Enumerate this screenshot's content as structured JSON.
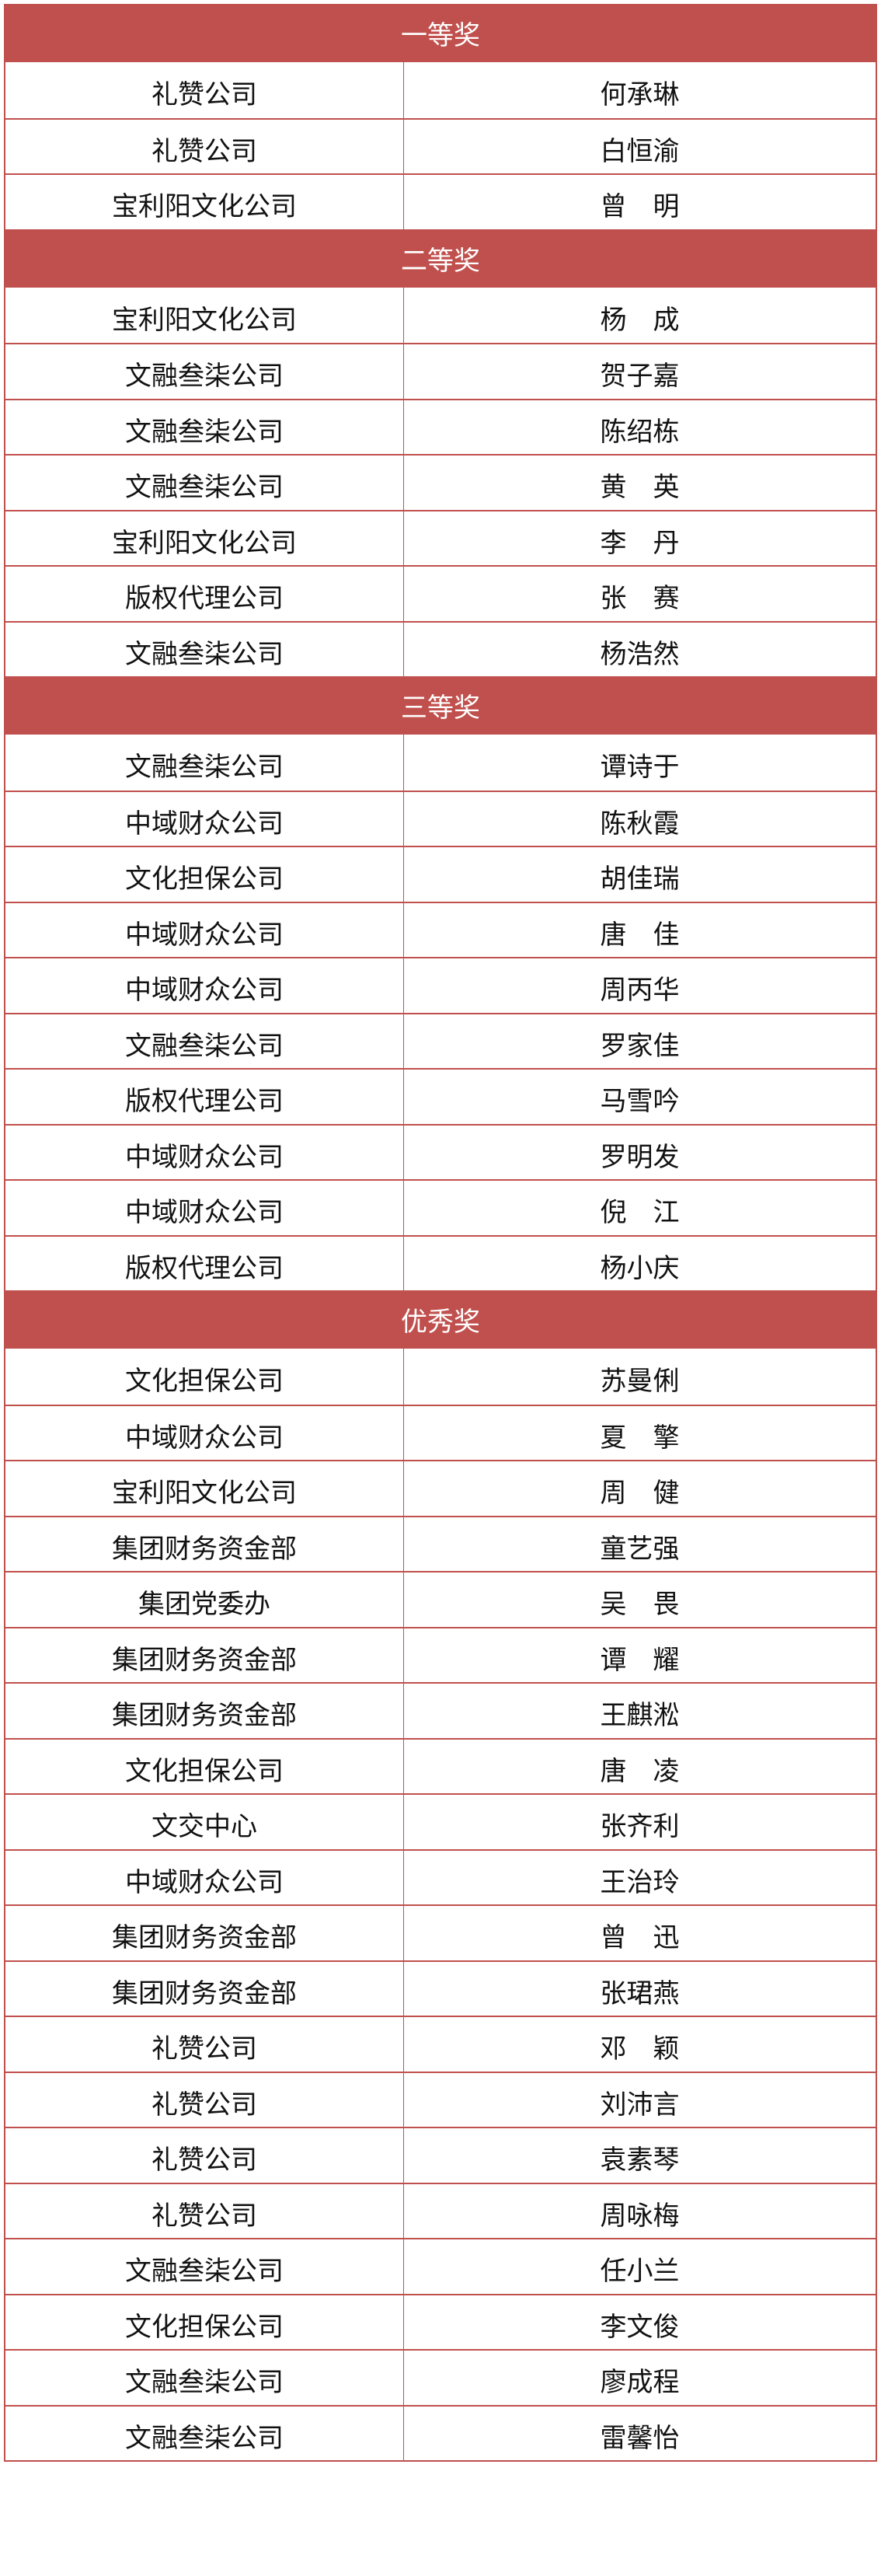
{
  "accent_color": "#c0504d",
  "sections": [
    {
      "title": "一等奖",
      "rows": [
        [
          "礼赞公司",
          "何承琳"
        ],
        [
          "礼赞公司",
          "白恒渝"
        ],
        [
          "宝利阳文化公司",
          "曾　明"
        ]
      ]
    },
    {
      "title": "二等奖",
      "rows": [
        [
          "宝利阳文化公司",
          "杨　成"
        ],
        [
          "文融叁柒公司",
          "贺子嘉"
        ],
        [
          "文融叁柒公司",
          "陈绍栋"
        ],
        [
          "文融叁柒公司",
          "黄　英"
        ],
        [
          "宝利阳文化公司",
          "李　丹"
        ],
        [
          "版权代理公司",
          "张　赛"
        ],
        [
          "文融叁柒公司",
          "杨浩然"
        ]
      ]
    },
    {
      "title": "三等奖",
      "rows": [
        [
          "文融叁柒公司",
          "谭诗于"
        ],
        [
          "中域财众公司",
          "陈秋霞"
        ],
        [
          "文化担保公司",
          "胡佳瑞"
        ],
        [
          "中域财众公司",
          "唐　佳"
        ],
        [
          "中域财众公司",
          "周丙华"
        ],
        [
          "文融叁柒公司",
          "罗家佳"
        ],
        [
          "版权代理公司",
          "马雪吟"
        ],
        [
          "中域财众公司",
          "罗明发"
        ],
        [
          "中域财众公司",
          "倪　江"
        ],
        [
          "版权代理公司",
          "杨小庆"
        ]
      ]
    },
    {
      "title": "优秀奖",
      "rows": [
        [
          "文化担保公司",
          "苏曼俐"
        ],
        [
          "中域财众公司",
          "夏　擎"
        ],
        [
          "宝利阳文化公司",
          "周　健"
        ],
        [
          "集团财务资金部",
          "童艺强"
        ],
        [
          "集团党委办",
          "吴　畏"
        ],
        [
          "集团财务资金部",
          "谭　耀"
        ],
        [
          "集团财务资金部",
          "王麒淞"
        ],
        [
          "文化担保公司",
          "唐　凌"
        ],
        [
          "文交中心",
          "张齐利"
        ],
        [
          "中域财众公司",
          "王治玲"
        ],
        [
          "集团财务资金部",
          "曾　迅"
        ],
        [
          "集团财务资金部",
          "张珺燕"
        ],
        [
          "礼赞公司",
          "邓　颖"
        ],
        [
          "礼赞公司",
          "刘沛言"
        ],
        [
          "礼赞公司",
          "袁素琴"
        ],
        [
          "礼赞公司",
          "周咏梅"
        ],
        [
          "文融叁柒公司",
          "任小兰"
        ],
        [
          "文化担保公司",
          "李文俊"
        ],
        [
          "文融叁柒公司",
          "廖成程"
        ],
        [
          "文融叁柒公司",
          "雷馨怡"
        ]
      ]
    }
  ]
}
